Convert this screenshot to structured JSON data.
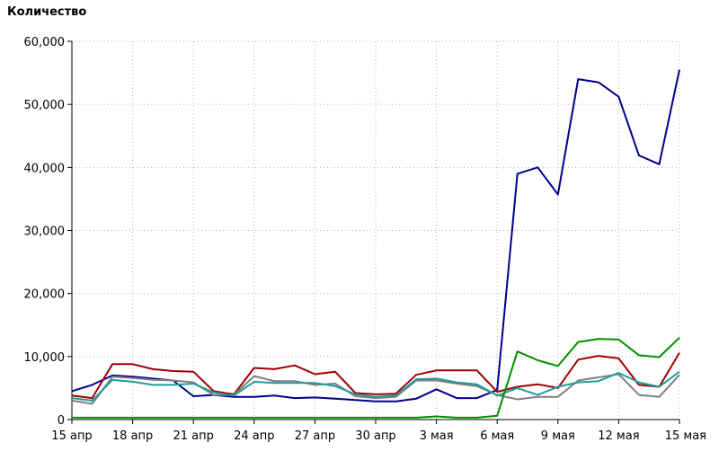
{
  "chart_data": {
    "type": "line",
    "ylabel": "Количество",
    "xlabel": "",
    "ylim": [
      0,
      60000
    ],
    "y_ticks": [
      0,
      10000,
      20000,
      30000,
      40000,
      50000,
      60000
    ],
    "y_tick_labels": [
      "0",
      "10,000",
      "20,000",
      "30,000",
      "40,000",
      "50,000",
      "60,000"
    ],
    "x_ticks": [
      0,
      3,
      6,
      9,
      12,
      15,
      18,
      21,
      24,
      27,
      30
    ],
    "x_tick_labels": [
      "15 апр",
      "18 апр",
      "21 апр",
      "24 апр",
      "27 апр",
      "30 апр",
      "3 мая",
      "6 мая",
      "9 мая",
      "12 мая",
      "15 мая"
    ],
    "grid": true,
    "x": [
      "15 апр",
      "16 апр",
      "17 апр",
      "18 апр",
      "19 апр",
      "20 апр",
      "21 апр",
      "22 апр",
      "23 апр",
      "24 апр",
      "25 апр",
      "26 апр",
      "27 апр",
      "28 апр",
      "29 апр",
      "30 апр",
      "1 мая",
      "2 мая",
      "3 мая",
      "4 мая",
      "5 мая",
      "6 мая",
      "7 мая",
      "8 мая",
      "9 мая",
      "10 мая",
      "11 мая",
      "12 мая",
      "13 мая",
      "14 мая",
      "15 мая"
    ],
    "series": [
      {
        "color": "#00008b",
        "values": [
          4500,
          5500,
          7000,
          6800,
          6500,
          6200,
          3700,
          3900,
          3600,
          3600,
          3800,
          3400,
          3500,
          3300,
          3100,
          2900,
          2900,
          3300,
          4800,
          3400,
          3400,
          4700,
          39000,
          40000,
          35700,
          54000,
          53500,
          51200,
          41900,
          40500,
          55500
        ]
      },
      {
        "color": "#a00000",
        "values": [
          3800,
          3400,
          8800,
          8800,
          8000,
          7700,
          7600,
          4500,
          4000,
          8200,
          8000,
          8600,
          7200,
          7600,
          4200,
          4000,
          4100,
          7100,
          7800,
          7800,
          7800,
          4400,
          5200,
          5600,
          5000,
          9500,
          10100,
          9700,
          5500,
          5200,
          10600
        ]
      },
      {
        "color": "#808080",
        "values": [
          3000,
          2500,
          6800,
          6600,
          6300,
          6200,
          5900,
          3900,
          3900,
          6900,
          6100,
          6100,
          5500,
          5700,
          3700,
          3400,
          3600,
          6200,
          6200,
          5700,
          5300,
          3900,
          3200,
          3600,
          3600,
          6200,
          6700,
          7200,
          3900,
          3600,
          7100
        ]
      },
      {
        "color": "#209c9c",
        "values": [
          3400,
          3000,
          6300,
          6000,
          5500,
          5500,
          5700,
          4300,
          3800,
          6000,
          5800,
          5800,
          5800,
          5300,
          4000,
          3600,
          3800,
          6400,
          6500,
          5900,
          5600,
          3800,
          5000,
          3900,
          5200,
          5900,
          6100,
          7400,
          5900,
          5200,
          7600
        ]
      },
      {
        "color": "#009000",
        "values": [
          300,
          300,
          300,
          300,
          300,
          300,
          300,
          300,
          300,
          300,
          300,
          300,
          300,
          300,
          300,
          300,
          300,
          300,
          500,
          300,
          300,
          600,
          10800,
          9400,
          8500,
          12300,
          12800,
          12700,
          10200,
          9900,
          13000
        ]
      }
    ]
  }
}
